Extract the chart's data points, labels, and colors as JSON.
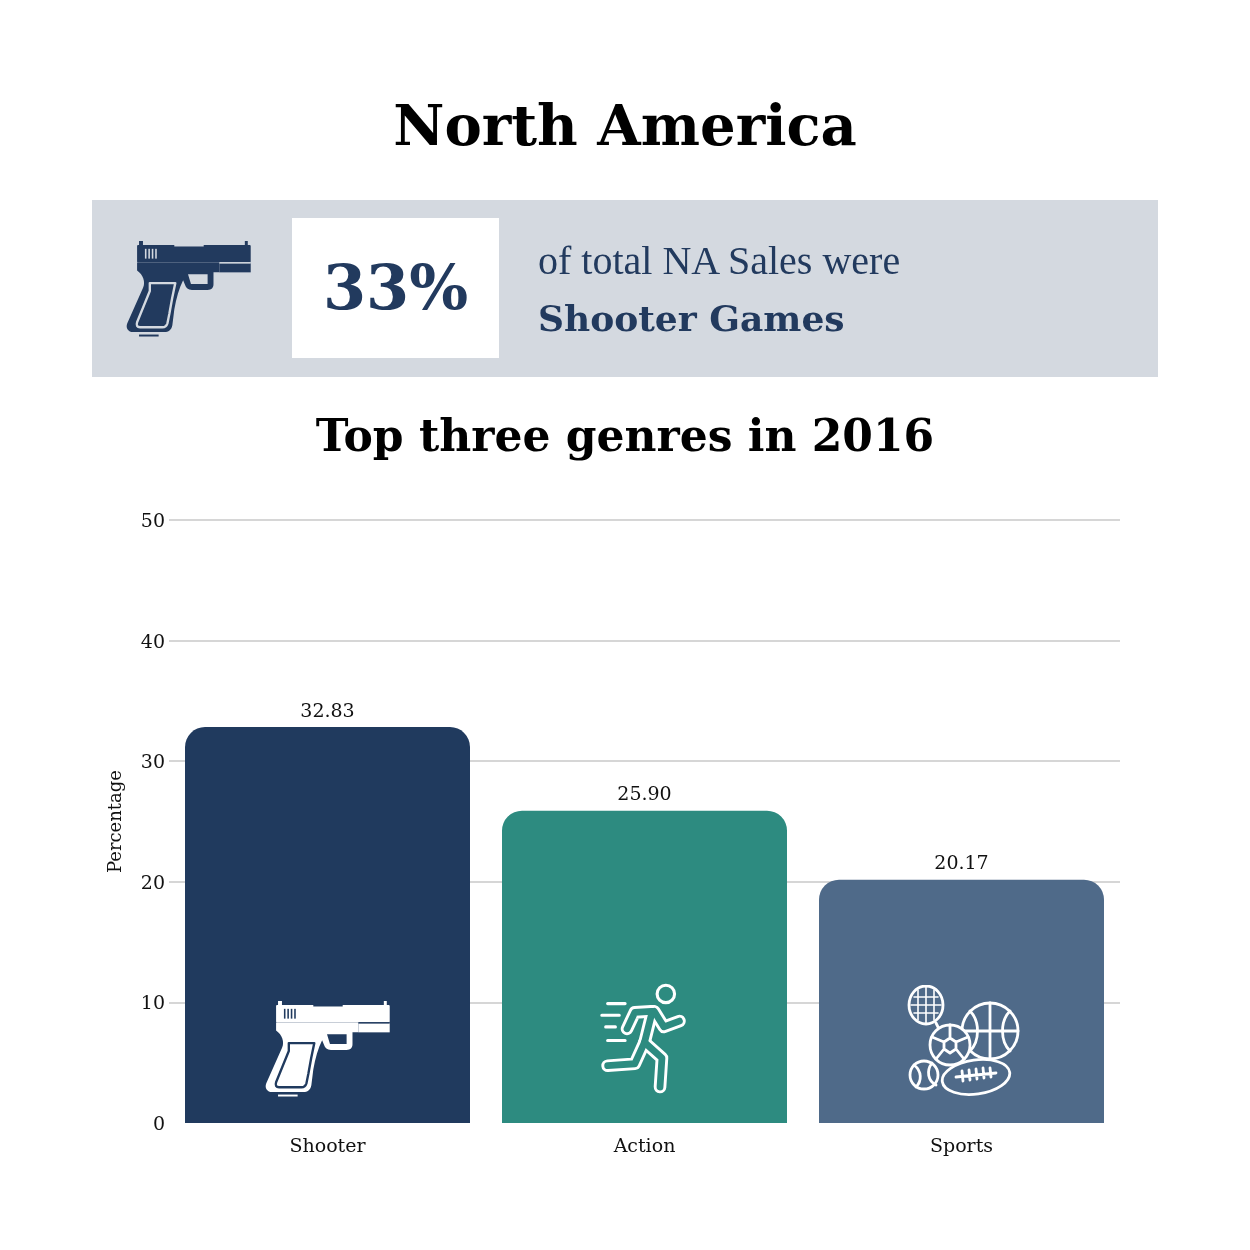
{
  "chart_data": {
    "type": "bar",
    "title": "North America",
    "subtitle": "Top three genres in 2016",
    "annotations": [
      "33%",
      "of total NA Sales were",
      "Shooter Games"
    ],
    "ylabel": "Percentage",
    "categories": [
      "Shooter",
      "Action",
      "Sports"
    ],
    "values": [
      32.83,
      25.9,
      20.17
    ],
    "colors": [
      "#203a5e",
      "#2d8b80",
      "#4f6a89"
    ],
    "value_labels": [
      "32.83",
      "25.90",
      "20.17"
    ],
    "ylim": [
      0,
      50
    ],
    "yticks": [
      0,
      10,
      20,
      30,
      40,
      50
    ],
    "grid": "y"
  }
}
